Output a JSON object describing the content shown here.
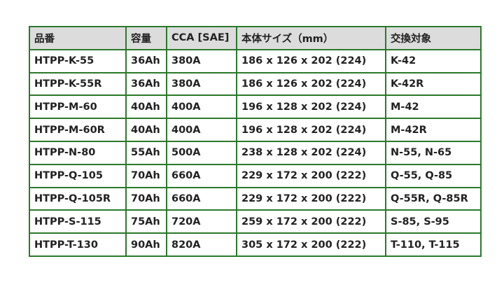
{
  "table": {
    "headers": [
      "品番",
      "容量",
      "CCA [SAE]",
      "本体サイズ（mm）",
      "交換対象"
    ],
    "rows": [
      [
        "HTPP-K-55",
        "36Ah",
        "380A",
        "186 x 126 x 202 (224)",
        "K-42"
      ],
      [
        "HTPP-K-55R",
        "36Ah",
        "380A",
        "186 x 126 x 202 (224)",
        "K-42R"
      ],
      [
        "HTPP-M-60",
        "40Ah",
        "400A",
        "196 x 128 x 202 (224)",
        "M-42"
      ],
      [
        "HTPP-M-60R",
        "40Ah",
        "400A",
        "196 x 128 x 202 (224)",
        "M-42R"
      ],
      [
        "HTPP-N-80",
        "55Ah",
        "500A",
        "238 x 128 x 202 (224)",
        "N-55, N-65"
      ],
      [
        "HTPP-Q-105",
        "70Ah",
        "660A",
        "229 x 172 x 200 (222)",
        "Q-55, Q-85"
      ],
      [
        "HTPP-Q-105R",
        "70Ah",
        "660A",
        "229 x 172 x 200 (222)",
        "Q-55R, Q-85R"
      ],
      [
        "HTPP-S-115",
        "75Ah",
        "720A",
        "259 x 172 x 200 (222)",
        "S-85, S-95"
      ],
      [
        "HTPP-T-130",
        "90Ah",
        "820A",
        "305 x 172 x 200 (222)",
        "T-110, T-115"
      ]
    ]
  },
  "colors": {
    "border": "#2b7a2b",
    "header_bg": "#dcdcdc"
  }
}
